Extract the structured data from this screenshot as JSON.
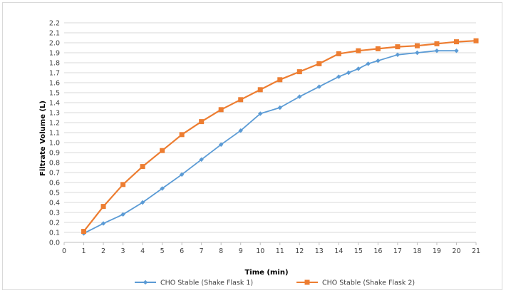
{
  "chart_data": {
    "type": "line",
    "title": "",
    "xlabel": "Time (min)",
    "ylabel": "Filtrate Volume (L)",
    "xlim": [
      0,
      21
    ],
    "ylim": [
      0.0,
      2.2
    ],
    "x_ticks": [
      "0",
      "1",
      "2",
      "3",
      "4",
      "5",
      "6",
      "7",
      "8",
      "9",
      "10",
      "11",
      "12",
      "13",
      "14",
      "15",
      "16",
      "17",
      "18",
      "19",
      "20",
      "21"
    ],
    "y_ticks": [
      "0.0",
      "0.1",
      "0.2",
      "0.3",
      "0.4",
      "0.5",
      "0.6",
      "0.7",
      "0.8",
      "0.9",
      "1.0",
      "1.1",
      "1.2",
      "1.3",
      "1.4",
      "1.5",
      "1.6",
      "1.7",
      "1.8",
      "1.9",
      "2.0",
      "2.1",
      "2.2"
    ],
    "grid": "horizontal",
    "legend_position": "bottom",
    "series": [
      {
        "name": "CHO Stable (Shake Flask 1)",
        "color": "#5b9bd5",
        "marker": "diamond",
        "points": [
          [
            1,
            0.09
          ],
          [
            2,
            0.19
          ],
          [
            3,
            0.28
          ],
          [
            4,
            0.4
          ],
          [
            5,
            0.54
          ],
          [
            6,
            0.68
          ],
          [
            7,
            0.83
          ],
          [
            8,
            0.98
          ],
          [
            9,
            1.12
          ],
          [
            10,
            1.29
          ],
          [
            11,
            1.35
          ],
          [
            12,
            1.46
          ],
          [
            13,
            1.56
          ],
          [
            14,
            1.66
          ],
          [
            14.5,
            1.7
          ],
          [
            15,
            1.74
          ],
          [
            15.5,
            1.79
          ],
          [
            16,
            1.82
          ],
          [
            17,
            1.88
          ],
          [
            18,
            1.9
          ],
          [
            19,
            1.92
          ],
          [
            20,
            1.92
          ]
        ]
      },
      {
        "name": "CHO Stable (Shake Flask 2)",
        "color": "#ed7d31",
        "marker": "square",
        "points": [
          [
            1,
            0.11
          ],
          [
            2,
            0.36
          ],
          [
            3,
            0.58
          ],
          [
            4,
            0.76
          ],
          [
            5,
            0.92
          ],
          [
            6,
            1.08
          ],
          [
            7,
            1.21
          ],
          [
            8,
            1.33
          ],
          [
            9,
            1.43
          ],
          [
            10,
            1.53
          ],
          [
            11,
            1.63
          ],
          [
            12,
            1.71
          ],
          [
            13,
            1.79
          ],
          [
            14,
            1.89
          ],
          [
            15,
            1.92
          ],
          [
            16,
            1.94
          ],
          [
            17,
            1.96
          ],
          [
            18,
            1.97
          ],
          [
            19,
            1.99
          ],
          [
            20,
            2.01
          ],
          [
            21,
            2.02
          ]
        ]
      }
    ]
  }
}
